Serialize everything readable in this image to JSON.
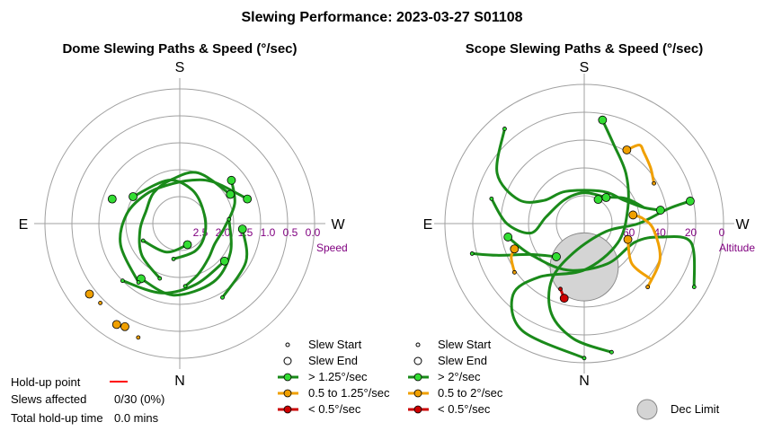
{
  "chart_data": [
    {
      "type": "polar",
      "title": "Dome Slewing Paths & Speed (°/sec)",
      "directions": {
        "top": "S",
        "bottom": "N",
        "left": "E",
        "right": "W"
      },
      "radial_axis": {
        "label": "Speed",
        "ticks": [
          "2.5",
          "2.0",
          "1.5",
          "1.0",
          "0.5",
          "0.0"
        ],
        "range": [
          0.0,
          3.0
        ]
      },
      "paths": [
        {
          "category": "fast",
          "points": [
            [
              1.4,
              175
            ],
            [
              1.2,
              160
            ],
            [
              1.0,
              140
            ],
            [
              0.9,
              120
            ],
            [
              1.0,
              95
            ],
            [
              1.3,
              70
            ],
            [
              1.5,
              50
            ]
          ]
        },
        {
          "category": "fast",
          "points": [
            [
              1.3,
              200
            ],
            [
              1.1,
              230
            ],
            [
              0.9,
              260
            ],
            [
              0.8,
              290
            ],
            [
              0.9,
              320
            ],
            [
              1.0,
              350
            ],
            [
              1.2,
              20
            ],
            [
              1.3,
              60
            ]
          ]
        },
        {
          "category": "fast",
          "points": [
            [
              1.6,
              215
            ],
            [
              1.4,
              250
            ],
            [
              1.2,
              280
            ],
            [
              1.0,
              310
            ],
            [
              0.9,
              340
            ],
            [
              1.0,
              15
            ],
            [
              1.2,
              40
            ],
            [
              1.6,
              70
            ]
          ]
        },
        {
          "category": "fast",
          "points": [
            [
              0.8,
              190
            ],
            [
              0.7,
              150
            ],
            [
              0.6,
              110
            ],
            [
              0.6,
              60
            ],
            [
              0.8,
              20
            ],
            [
              1.0,
              345
            ],
            [
              1.2,
              300
            ]
          ]
        },
        {
          "category": "fast",
          "points": [
            [
              1.1,
              85
            ],
            [
              1.3,
              120
            ],
            [
              1.5,
              150
            ],
            [
              1.6,
              185
            ],
            [
              1.5,
              215
            ]
          ]
        },
        {
          "category": "fast",
          "points": [
            [
              1.8,
              225
            ],
            [
              1.6,
              195
            ],
            [
              1.4,
              165
            ],
            [
              1.3,
              130
            ]
          ]
        },
        {
          "category": "fast",
          "points": [
            [
              1.9,
              150
            ],
            [
              1.7,
              120
            ],
            [
              1.4,
              95
            ]
          ]
        },
        {
          "category": "fast",
          "points": [
            [
              0.9,
              245
            ],
            [
              0.7,
              205
            ],
            [
              0.5,
              160
            ]
          ]
        }
      ],
      "slew_starts": [
        {
          "r": 1.4,
          "theta": 175,
          "category": "fast"
        },
        {
          "r": 1.3,
          "theta": 200,
          "category": "fast"
        },
        {
          "r": 1.6,
          "theta": 215,
          "category": "fast"
        },
        {
          "r": 0.8,
          "theta": 190,
          "category": "fast"
        },
        {
          "r": 1.1,
          "theta": 85,
          "category": "fast"
        },
        {
          "r": 1.8,
          "theta": 225,
          "category": "fast"
        },
        {
          "r": 1.9,
          "theta": 150,
          "category": "fast"
        },
        {
          "r": 0.9,
          "theta": 245,
          "category": "fast"
        },
        {
          "r": 2.7,
          "theta": 200,
          "category": "medium"
        },
        {
          "r": 2.5,
          "theta": 225,
          "category": "medium"
        }
      ],
      "slew_ends": [
        {
          "r": 1.5,
          "theta": 50,
          "category": "fast"
        },
        {
          "r": 1.3,
          "theta": 60,
          "category": "fast"
        },
        {
          "r": 1.6,
          "theta": 70,
          "category": "fast"
        },
        {
          "r": 1.2,
          "theta": 300,
          "category": "fast"
        },
        {
          "r": 1.5,
          "theta": 215,
          "category": "fast"
        },
        {
          "r": 1.3,
          "theta": 130,
          "category": "fast"
        },
        {
          "r": 1.4,
          "theta": 95,
          "category": "fast"
        },
        {
          "r": 0.5,
          "theta": 160,
          "category": "fast"
        },
        {
          "r": 2.6,
          "theta": 208,
          "category": "medium"
        },
        {
          "r": 2.55,
          "theta": 232,
          "category": "medium"
        },
        {
          "r": 2.65,
          "theta": 212,
          "category": "medium"
        },
        {
          "r": 1.6,
          "theta": 290,
          "category": "fast"
        }
      ],
      "legend": {
        "start": "Slew Start",
        "end": "Slew End",
        "fast": "> 1.25°/sec",
        "medium": "0.5 to 1.25°/sec",
        "slow": "< 0.5°/sec"
      }
    },
    {
      "type": "polar",
      "title": "Scope Slewing Paths & Speed (°/sec)",
      "directions": {
        "top": "S",
        "bottom": "N",
        "left": "E",
        "right": "W"
      },
      "radial_axis": {
        "label": "Altitude",
        "ticks": [
          "60",
          "40",
          "20",
          "0"
        ],
        "range": [
          90,
          0
        ]
      },
      "dec_limit": {
        "alt_center": 62,
        "azimuth": 0,
        "radius_deg": 22
      },
      "paths": [
        {
          "category": "fast",
          "points": [
            [
              5,
              168
            ],
            [
              15,
              185
            ],
            [
              28,
              200
            ],
            [
              48,
              210
            ],
            [
              70,
              200
            ],
            [
              75,
              110
            ],
            [
              55,
              90
            ],
            [
              35,
              80
            ],
            [
              20,
              78
            ]
          ]
        },
        {
          "category": "fast",
          "points": [
            [
              3,
              180
            ],
            [
              10,
              210
            ],
            [
              25,
              225
            ],
            [
              45,
              220
            ],
            [
              60,
              180
            ],
            [
              65,
              120
            ],
            [
              60,
              70
            ],
            [
              48,
              40
            ],
            [
              35,
              20
            ],
            [
              22,
              10
            ]
          ]
        },
        {
          "category": "fast",
          "points": [
            [
              8,
              120
            ],
            [
              20,
              100
            ],
            [
              40,
              100
            ],
            [
              55,
              110
            ],
            [
              60,
              150
            ],
            [
              58,
              200
            ],
            [
              50,
              240
            ],
            [
              40,
              260
            ]
          ]
        },
        {
          "category": "fast",
          "points": [
            [
              10,
              320
            ],
            [
              25,
              300
            ],
            [
              45,
              290
            ],
            [
              60,
              300
            ],
            [
              66,
              330
            ],
            [
              66,
              30
            ],
            [
              60,
              60
            ],
            [
              50,
              75
            ],
            [
              40,
              80
            ]
          ]
        },
        {
          "category": "fast",
          "points": [
            [
              28,
              285
            ],
            [
              40,
              270
            ],
            [
              55,
              260
            ],
            [
              65,
              280
            ],
            [
              70,
              320
            ],
            [
              70,
              0
            ],
            [
              68,
              40
            ]
          ]
        },
        {
          "category": "fast",
          "points": [
            [
              15,
              255
            ],
            [
              30,
              250
            ],
            [
              50,
              240
            ],
            [
              62,
              220
            ]
          ]
        },
        {
          "category": "fast",
          "points": [
            [
              50,
              75
            ],
            [
              58,
              60
            ],
            [
              66,
              45
            ],
            [
              72,
              30
            ]
          ]
        },
        {
          "category": "medium",
          "points": [
            [
              35,
              235
            ],
            [
              38,
              245
            ],
            [
              42,
              250
            ]
          ]
        },
        {
          "category": "medium",
          "points": [
            [
              32,
              135
            ],
            [
              36,
              115
            ],
            [
              45,
              95
            ],
            [
              52,
              85
            ],
            [
              58,
              80
            ]
          ]
        },
        {
          "category": "medium",
          "points": [
            [
              38,
              60
            ],
            [
              34,
              50
            ],
            [
              30,
              40
            ],
            [
              28,
              35
            ],
            [
              35,
              30
            ]
          ]
        },
        {
          "category": "medium",
          "points": [
            [
              35,
              130
            ],
            [
              50,
              130
            ],
            [
              60,
              110
            ]
          ]
        },
        {
          "category": "slow",
          "points": [
            [
              45,
              200
            ],
            [
              40,
              195
            ]
          ]
        }
      ],
      "slew_starts": [
        {
          "r": 5,
          "theta": 168,
          "category": "fast"
        },
        {
          "r": 3,
          "theta": 180,
          "category": "fast"
        },
        {
          "r": 8,
          "theta": 120,
          "category": "fast"
        },
        {
          "r": 10,
          "theta": 320,
          "category": "fast"
        },
        {
          "r": 28,
          "theta": 285,
          "category": "fast"
        },
        {
          "r": 15,
          "theta": 255,
          "category": "fast"
        },
        {
          "r": 35,
          "theta": 235,
          "category": "medium"
        },
        {
          "r": 32,
          "theta": 135,
          "category": "medium"
        },
        {
          "r": 38,
          "theta": 60,
          "category": "medium"
        },
        {
          "r": 45,
          "theta": 200,
          "category": "slow"
        }
      ],
      "slew_ends": [
        {
          "r": 20,
          "theta": 78,
          "category": "fast"
        },
        {
          "r": 22,
          "theta": 10,
          "category": "fast"
        },
        {
          "r": 40,
          "theta": 260,
          "category": "fast"
        },
        {
          "r": 40,
          "theta": 80,
          "category": "fast"
        },
        {
          "r": 68,
          "theta": 40,
          "category": "fast"
        },
        {
          "r": 62,
          "theta": 220,
          "category": "fast"
        },
        {
          "r": 72,
          "theta": 30,
          "category": "fast"
        },
        {
          "r": 42,
          "theta": 250,
          "category": "medium"
        },
        {
          "r": 58,
          "theta": 80,
          "category": "medium"
        },
        {
          "r": 35,
          "theta": 30,
          "category": "medium"
        },
        {
          "r": 60,
          "theta": 110,
          "category": "medium"
        },
        {
          "r": 40,
          "theta": 195,
          "category": "slow"
        }
      ],
      "legend": {
        "start": "Slew Start",
        "end": "Slew End",
        "fast": "> 2°/sec",
        "medium": "0.5 to 2°/sec",
        "slow": "< 0.5°/sec",
        "dec_limit": "Dec Limit"
      }
    }
  ],
  "page": {
    "title": "Slewing Performance: 2023-03-27 S01108"
  },
  "colors": {
    "fast": "#1a8a1a",
    "fast_marker": "#33dd33",
    "medium": "#f0a000",
    "medium_marker": "#f0a000",
    "slow": "#cc0000",
    "slow_marker": "#cc0000",
    "holdup": "#ff0000",
    "dec_limit_fill": "#d4d4d4",
    "grid": "#a0a0a0",
    "tick": "#800080"
  },
  "stats": {
    "holdup_label": "Hold-up point",
    "slews_affected_label": "Slews affected",
    "slews_affected_value": "0/30 (0%)",
    "total_holdup_label": "Total hold-up time",
    "total_holdup_value": "0.0 mins"
  }
}
